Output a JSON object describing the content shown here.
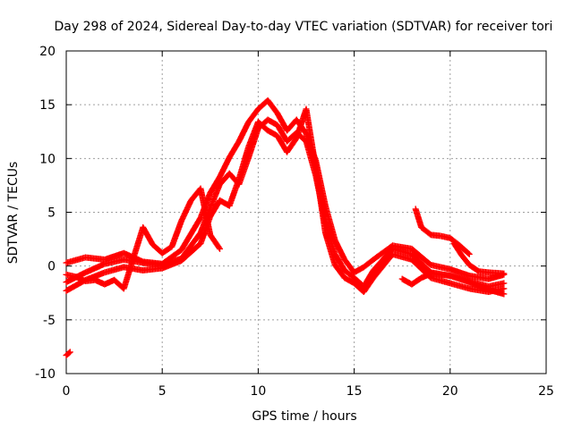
{
  "chart_data": {
    "type": "scatter",
    "title": "Day 298 of 2024, Sidereal Day-to-day VTEC variation (SDTVAR) for receiver tori",
    "xlabel": "GPS time / hours",
    "ylabel": "SDTVAR / TECUs",
    "xlim": [
      0,
      25
    ],
    "ylim": [
      -10,
      20
    ],
    "xticks": [
      "0",
      "5",
      "10",
      "15",
      "20",
      "25"
    ],
    "yticks": [
      "-10",
      "-5",
      "0",
      "5",
      "10",
      "15",
      "20"
    ],
    "grid": true,
    "marker": "+",
    "color": "#ff0000",
    "series": [
      {
        "name": "trace-1",
        "x": [
          0,
          1,
          2,
          3,
          4,
          5,
          6,
          7,
          7.5,
          8,
          8.5,
          9,
          9.5,
          10,
          10.5,
          11,
          11.5,
          12,
          12.5,
          13,
          13.5,
          14,
          14.5,
          15,
          15.5,
          16,
          17,
          18,
          19,
          20,
          21,
          22,
          22.8
        ],
        "y": [
          0.3,
          0.8,
          0.6,
          1.2,
          0.4,
          0.2,
          1.5,
          4.5,
          6.8,
          8.3,
          10.1,
          11.6,
          13.4,
          14.6,
          15.4,
          14.2,
          12.6,
          13.6,
          12.3,
          9.8,
          5.6,
          2.4,
          0.6,
          -0.6,
          -0.1,
          0.6,
          1.9,
          1.6,
          0.1,
          -0.3,
          -0.9,
          -1.2,
          -0.8
        ]
      },
      {
        "name": "trace-2",
        "x": [
          0,
          1,
          2,
          3,
          4,
          5,
          6,
          7,
          7.5,
          8,
          8.5,
          9,
          9.5,
          10,
          10.5,
          11,
          11.5,
          12,
          12.5,
          13,
          13.5,
          14,
          14.5,
          15,
          15.5,
          16,
          17,
          18,
          19,
          20,
          21,
          22,
          22.8
        ],
        "y": [
          -1.5,
          -0.6,
          0.2,
          0.6,
          0.3,
          0.1,
          0.7,
          3.1,
          5.4,
          7.6,
          8.6,
          7.6,
          10.1,
          12.8,
          13.6,
          13.1,
          11.6,
          12.4,
          11.6,
          8.4,
          4.1,
          1.1,
          -0.4,
          -1.1,
          -1.9,
          -0.4,
          1.6,
          1.1,
          -0.6,
          -0.9,
          -1.4,
          -1.9,
          -1.6
        ]
      },
      {
        "name": "trace-3",
        "x": [
          0,
          1,
          2,
          3,
          4,
          5,
          6,
          7,
          7.5,
          8,
          8.5,
          9,
          9.5,
          10,
          10.5,
          11,
          11.5,
          12,
          12.5,
          13,
          13.5,
          14,
          14.5,
          15,
          15.5,
          16,
          17,
          18,
          19,
          20,
          21,
          22,
          22.8
        ],
        "y": [
          -2.3,
          -1.3,
          -0.6,
          -0.1,
          -0.4,
          -0.2,
          0.5,
          2.1,
          4.6,
          6.1,
          5.6,
          8.1,
          11.1,
          13.4,
          12.6,
          12.1,
          10.6,
          11.9,
          14.6,
          9.1,
          3.1,
          0.1,
          -1.1,
          -1.6,
          -2.4,
          -1.1,
          1.1,
          0.6,
          -1.1,
          -1.6,
          -2.1,
          -2.4,
          -2.1
        ]
      },
      {
        "name": "trace-4",
        "x": [
          0,
          0.5,
          1,
          1.5,
          2,
          2.5,
          3,
          4,
          4.5,
          5,
          5.5,
          6,
          6.5,
          7,
          7.5,
          8
        ],
        "y": [
          -0.8,
          -1.0,
          -1.4,
          -1.3,
          -1.7,
          -1.3,
          -2.1,
          3.6,
          2.0,
          1.2,
          1.8,
          4.2,
          6.1,
          7.2,
          2.9,
          1.6
        ]
      },
      {
        "name": "trace-5",
        "x": [
          18.2,
          18.5,
          19,
          19.5,
          20,
          20.5,
          21
        ],
        "y": [
          5.3,
          3.6,
          2.9,
          2.8,
          2.6,
          1.9,
          1.1
        ]
      },
      {
        "name": "trace-6",
        "x": [
          17.5,
          18,
          18.5,
          19,
          19.5,
          20,
          21,
          22,
          22.8
        ],
        "y": [
          -1.2,
          -1.7,
          -1.1,
          -0.7,
          -0.8,
          -0.9,
          -1.5,
          -2.2,
          -2.6
        ]
      },
      {
        "name": "trace-7",
        "x": [
          20.2,
          20.6,
          21,
          21.5,
          22,
          22.8
        ],
        "y": [
          2.1,
          1.0,
          0.1,
          -0.5,
          -0.6,
          -0.7
        ]
      },
      {
        "name": "trace-8",
        "x": [
          0,
          0.2
        ],
        "y": [
          -8.3,
          -8.0
        ]
      }
    ]
  }
}
